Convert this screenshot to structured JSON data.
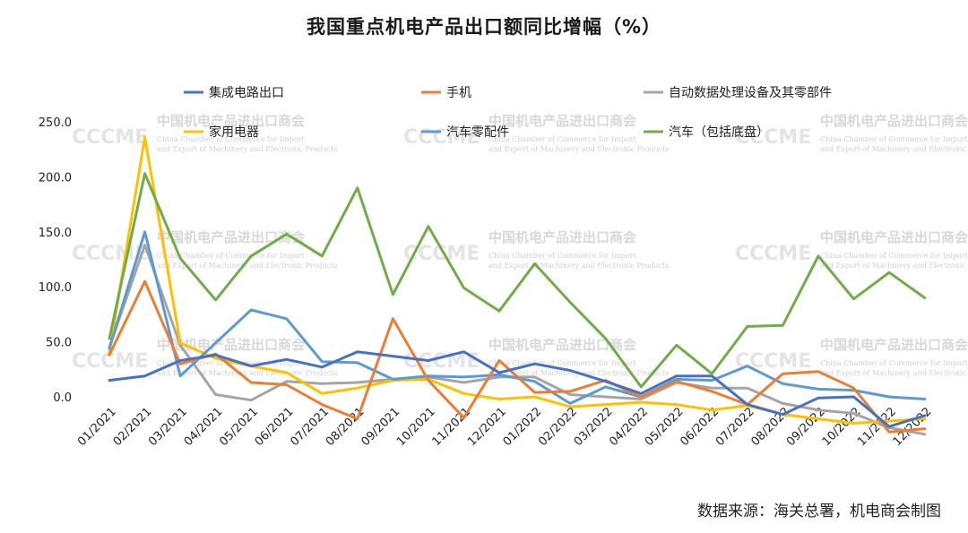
{
  "source_note": "数据来源：海关总署，机电商会制图",
  "watermark": {
    "logo": "CCCME",
    "cn": "中国机电产品进出口商会",
    "en1": "China Chamber of Commerce for Import",
    "en2": "and Export of Machinery and Electronic Products"
  },
  "chart_data": {
    "type": "line",
    "title": "我国重点机电产品出口额同比增幅（%）",
    "xlabel": "",
    "ylabel": "",
    "ylim": [
      -10,
      250
    ],
    "yticks": [
      "250.0",
      "200.0",
      "150.0",
      "100.0",
      "50.0",
      "0.0"
    ],
    "ytick_values": [
      250,
      200,
      150,
      100,
      50,
      0
    ],
    "grid": false,
    "legend_position": "top",
    "categories": [
      "01/2021",
      "02/2021",
      "03/2021",
      "04/2021",
      "05/2021",
      "06/2021",
      "07/2021",
      "08/2021",
      "09/2021",
      "10/2021",
      "11/2021",
      "12/2021",
      "01/2022",
      "02/2022",
      "03/2022",
      "04/2022",
      "05/2022",
      "06/2022",
      "07/2022",
      "08/2022",
      "09/2022",
      "10/2022",
      "11/2022",
      "12/2022"
    ],
    "series": [
      {
        "name": "集成电路出口",
        "color": "#4472c4",
        "values": [
          15,
          19,
          33,
          38,
          28,
          34,
          27,
          41,
          37,
          33,
          41,
          22,
          30,
          24,
          14,
          3,
          19,
          19,
          -7,
          -16,
          -1,
          0,
          -27,
          -17
        ]
      },
      {
        "name": "手机",
        "color": "#ed7d31",
        "values": [
          38,
          105,
          30,
          39,
          13,
          11,
          -7,
          -20,
          71,
          15,
          -19,
          33,
          4,
          5,
          15,
          0,
          14,
          5,
          -7,
          21,
          23,
          8,
          -32,
          -29
        ]
      },
      {
        "name": "自动数据处理设备及其零部件",
        "color": "#a5a5a5",
        "values": [
          45,
          138,
          47,
          2,
          -3,
          14,
          12,
          13,
          16,
          18,
          13,
          18,
          18,
          2,
          0,
          -2,
          13,
          8,
          8,
          -6,
          -12,
          -15,
          -28,
          -34
        ]
      },
      {
        "name": "家用电器",
        "color": "#ffc000",
        "values": [
          40,
          236,
          49,
          35,
          28,
          22,
          3,
          8,
          15,
          16,
          3,
          -2,
          0,
          -9,
          -7,
          -5,
          -7,
          -12,
          -8,
          -16,
          -20,
          -24,
          -22,
          -20
        ]
      },
      {
        "name": "汽车零配件",
        "color": "#5b9bd5",
        "values": [
          44,
          150,
          19,
          49,
          79,
          71,
          32,
          31,
          16,
          19,
          18,
          20,
          14,
          -6,
          9,
          0,
          16,
          15,
          28,
          12,
          7,
          6,
          0,
          -2
        ]
      },
      {
        "name": "汽车（包括底盘）",
        "color": "#70ad47",
        "values": [
          53,
          203,
          126,
          88,
          128,
          148,
          128,
          190,
          93,
          155,
          99,
          78,
          121,
          86,
          53,
          9,
          47,
          21,
          64,
          65,
          128,
          89,
          113,
          90
        ]
      }
    ]
  }
}
